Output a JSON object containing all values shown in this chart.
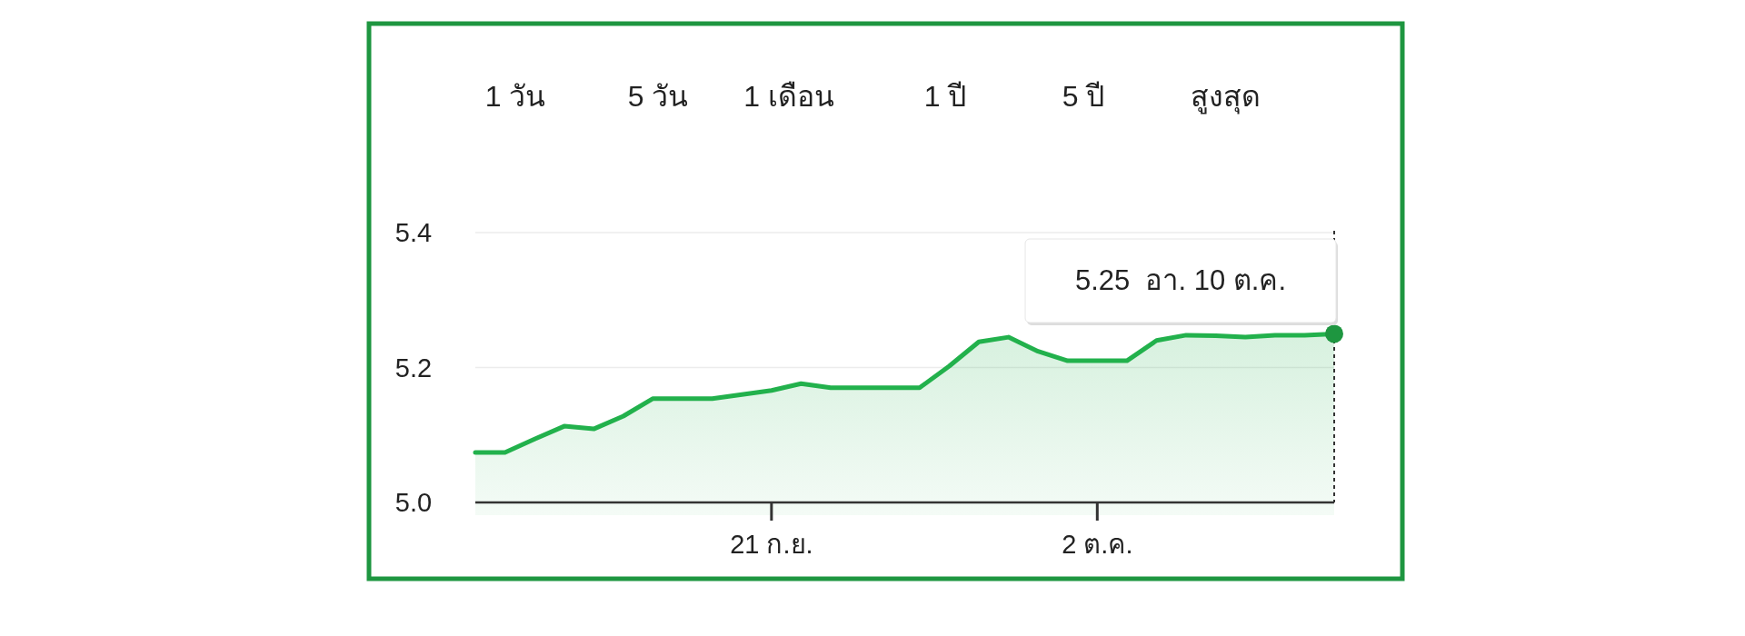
{
  "chart_data": {
    "type": "area",
    "x": [
      "--09-11",
      "--09-12",
      "--09-13",
      "--09-14",
      "--09-15",
      "--09-16",
      "--09-17",
      "--09-18",
      "--09-19",
      "--09-20",
      "--09-21",
      "--09-22",
      "--09-23",
      "--09-24",
      "--09-25",
      "--09-26",
      "--09-27",
      "--09-28",
      "--09-29",
      "--09-30",
      "--10-01",
      "--10-02",
      "--10-03",
      "--10-04",
      "--10-05",
      "--10-06",
      "--10-07",
      "--10-08",
      "--10-09",
      "--10-10"
    ],
    "series": [
      {
        "color": "#22b14c",
        "values": [
          5.074,
          5.074,
          5.094,
          5.113,
          5.109,
          5.128,
          5.154,
          5.154,
          5.154,
          5.16,
          5.166,
          5.176,
          5.17,
          5.17,
          5.17,
          5.17,
          5.202,
          5.238,
          5.245,
          5.224,
          5.21,
          5.21,
          5.21,
          5.24,
          5.248,
          5.247,
          5.245,
          5.248,
          5.248,
          5.25
        ]
      }
    ],
    "xlim": [
      "--09-11",
      "--10-10"
    ],
    "xticks": [
      {
        "value": "--09-21",
        "label": "21 ก.ย."
      },
      {
        "value": "--10-02",
        "label": "2 ต.ค."
      }
    ],
    "ylim": [
      5.0,
      5.4
    ],
    "yticks": [
      {
        "value": 5.0,
        "label": "5.0"
      },
      5.2,
      5.4
    ],
    "grid": "y",
    "annotations": [
      "1 วัน",
      "5 วัน",
      "1 เดือน",
      "1 ปี",
      "5 ปี",
      "สูงสุด",
      {
        "text": "5.25  อา. 10 ต.ค.",
        "x": "--10-10",
        "y": 5.25
      }
    ]
  }
}
